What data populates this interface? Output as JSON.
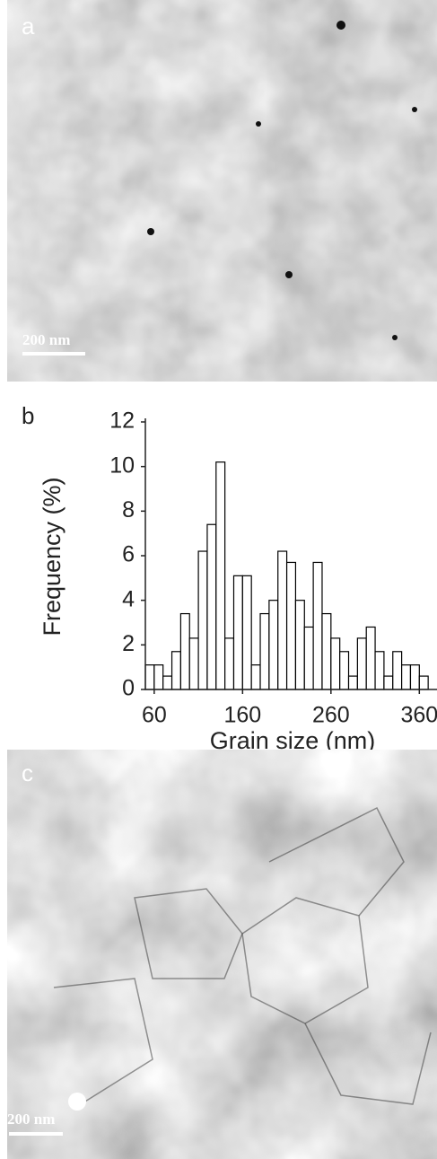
{
  "panels": [
    {
      "label": "a",
      "scale_bar": "200 nm"
    },
    {
      "label": "c",
      "scale_bar": "200 nm"
    }
  ],
  "chart_data": {
    "type": "histogram",
    "panel_label": "b",
    "x_label": "Grain size (nm)",
    "y_label": "Frequency (%)",
    "bins": [
      50,
      60,
      70,
      80,
      90,
      100,
      110,
      120,
      130,
      140,
      150,
      160,
      170,
      180,
      190,
      200,
      210,
      220,
      230,
      240,
      250,
      260,
      270,
      280,
      290,
      300,
      310,
      320,
      330,
      340,
      350,
      360,
      370
    ],
    "values": [
      1.1,
      1.1,
      0.6,
      1.7,
      3.4,
      2.3,
      6.2,
      7.4,
      10.2,
      2.3,
      5.1,
      5.1,
      1.1,
      3.4,
      4.0,
      6.2,
      5.7,
      4.0,
      2.8,
      5.7,
      3.4,
      2.3,
      1.7,
      0.6,
      2.3,
      2.8,
      1.7,
      0.6,
      1.7,
      1.1,
      1.1,
      0.6
    ],
    "color": "#ffffff",
    "edge_color": "#000000",
    "xlim": [
      50,
      380
    ],
    "ylim": [
      0,
      12
    ],
    "xticks": [
      60,
      160,
      260,
      360
    ],
    "yticks": [
      0,
      2,
      4,
      6,
      8,
      10,
      12
    ],
    "grid": false
  }
}
